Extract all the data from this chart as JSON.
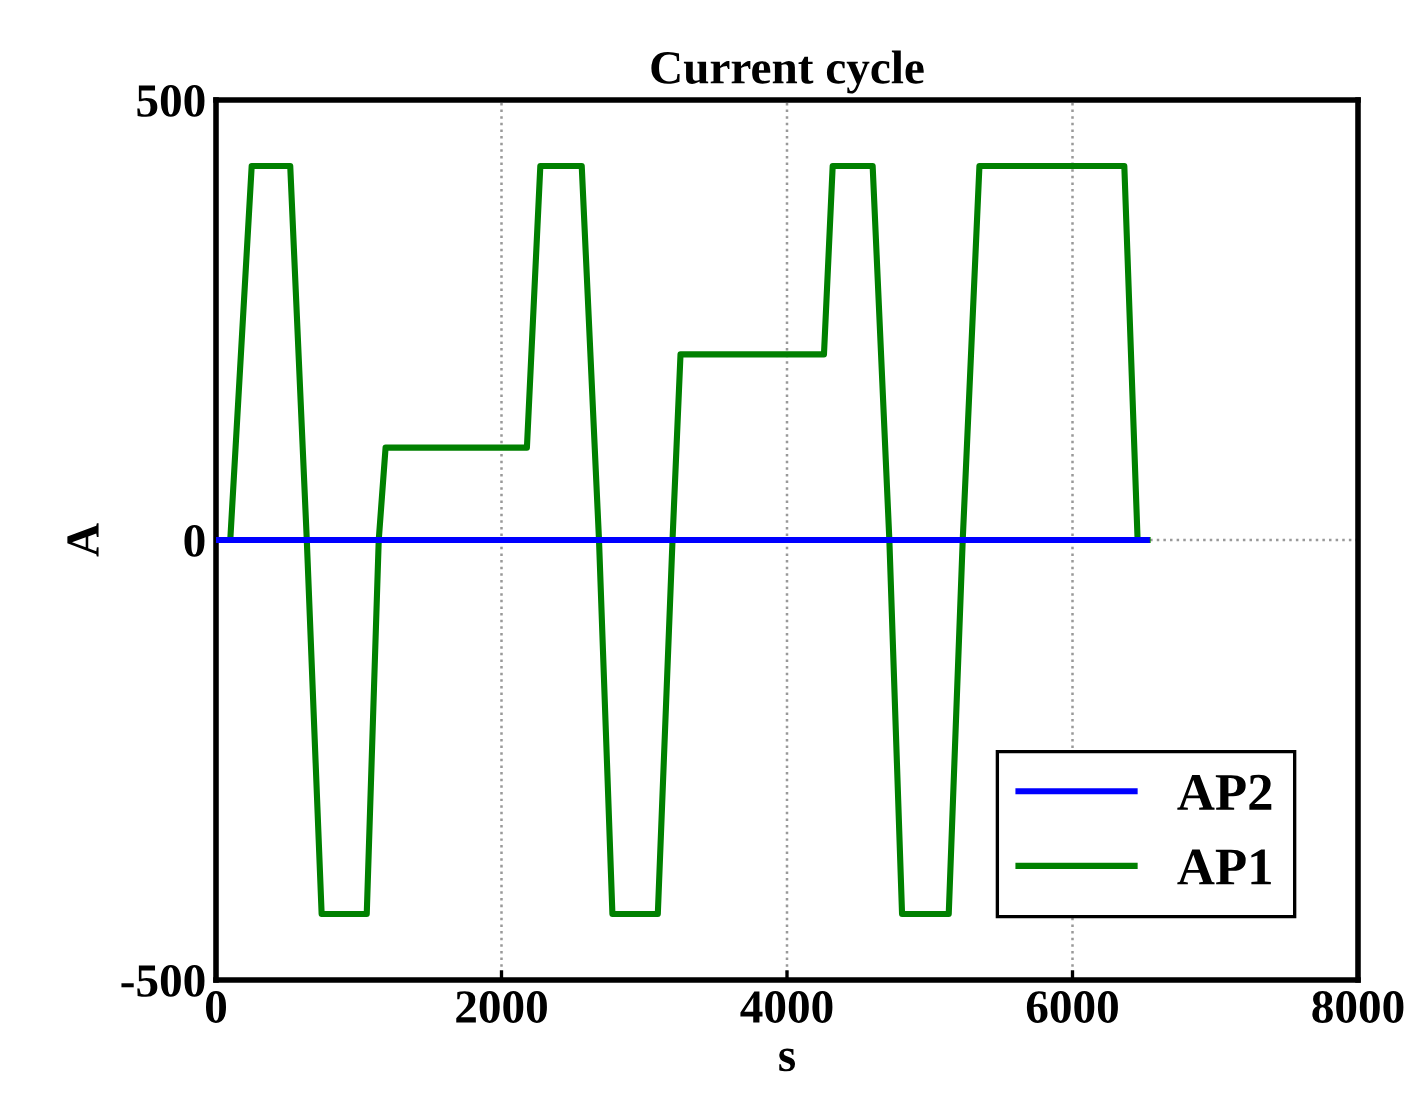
{
  "chart_data": {
    "type": "line",
    "title": "Current cycle",
    "xlabel": "s",
    "ylabel": "A",
    "xlim": [
      0,
      8000
    ],
    "ylim": [
      -500,
      500
    ],
    "xticks": [
      0,
      2000,
      4000,
      6000,
      8000
    ],
    "yticks": [
      -500,
      0,
      500
    ],
    "grid": true,
    "legend": "bottom right",
    "line_style": "solid",
    "marker": "none",
    "series": [
      {
        "name": "AP2",
        "color": "#0000ff",
        "x": [
          0,
          1000,
          2000,
          3000,
          4000,
          5000,
          6000,
          6520
        ],
        "values": [
          0,
          0,
          0,
          0,
          0,
          0,
          0,
          0
        ]
      },
      {
        "name": "AP1",
        "color": "#008000",
        "x": [
          0,
          100,
          250,
          520,
          636,
          740,
          1056,
          1140,
          1188,
          2178,
          2272,
          2562,
          2683,
          2777,
          3095,
          3198,
          3254,
          4259,
          4320,
          4600,
          4717,
          4806,
          5133,
          5231,
          5348,
          6363,
          6456,
          6526
        ],
        "values": [
          0,
          0,
          425,
          425,
          0,
          -425,
          -425,
          0,
          105,
          105,
          425,
          425,
          0,
          -425,
          -425,
          0,
          211,
          211,
          425,
          425,
          0,
          -425,
          -425,
          0,
          425,
          425,
          0,
          0
        ]
      }
    ]
  }
}
